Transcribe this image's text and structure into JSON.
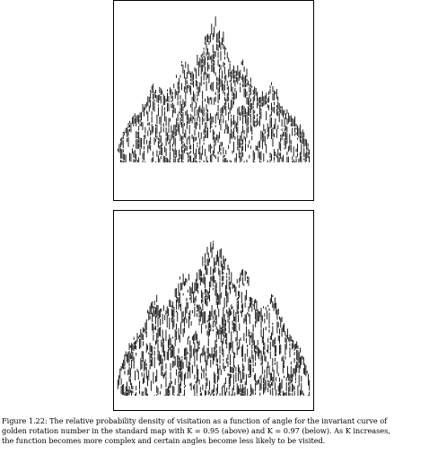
{
  "figure": {
    "caption_lines": [
      "Figure 1.22: The relative probability density of visitation as a function of angle for the invariant curve of",
      "golden rotation number in the standard map with K = 0.95 (above) and K = 0.97 (below). As K increases,",
      "the function becomes more complex and certain angles become less likely to be visited."
    ]
  },
  "chart_data": [
    {
      "type": "bar",
      "parameter_K": 0.95,
      "title": "",
      "xlabel": "",
      "ylabel": "",
      "grid": false,
      "note": "Relative probability density of visitation vs. angle; dense spiky bar profile rising to a central peak near the middle of the angle range."
    },
    {
      "type": "bar",
      "parameter_K": 0.97,
      "title": "",
      "xlabel": "",
      "ylabel": "",
      "grid": false,
      "note": "Relative probability density of visitation vs. angle; more complex spiky profile with gaps at certain angles."
    }
  ]
}
